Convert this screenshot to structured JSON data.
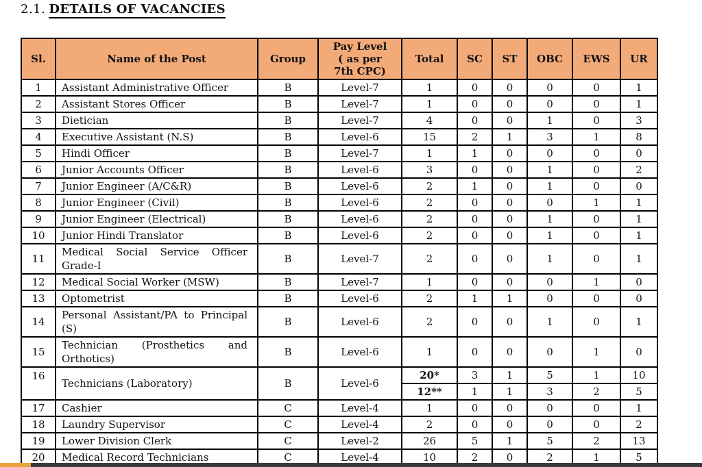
{
  "page": {
    "section_number": "2.1.",
    "title": "DETAILS OF VACANCIES"
  },
  "colors": {
    "header_bg": "#F3AA79",
    "table_border": "#000000",
    "progress_track": "#3A3A3C",
    "progress_fill": "#E8A33B"
  },
  "table": {
    "headers": [
      {
        "key": "sl",
        "label": "Sl."
      },
      {
        "key": "post-name",
        "label": "Name of the Post"
      },
      {
        "key": "group",
        "label": "Group"
      },
      {
        "key": "pay-level",
        "label": "Pay Level\n( as per\n7th CPC)"
      },
      {
        "key": "total",
        "label": "Total"
      },
      {
        "key": "sc",
        "label": "SC"
      },
      {
        "key": "st",
        "label": "ST"
      },
      {
        "key": "obc",
        "label": "OBC"
      },
      {
        "key": "ews",
        "label": "EWS"
      },
      {
        "key": "ur",
        "label": "UR"
      }
    ],
    "rows": [
      {
        "sl": "1",
        "name": "Assistant Administrative Officer",
        "group": "B",
        "pay_level": "Level-7",
        "counts": {
          "total": "1",
          "sc": "0",
          "st": "0",
          "obc": "0",
          "ews": "0",
          "ur": "1"
        }
      },
      {
        "sl": "2",
        "name": "Assistant Stores Officer",
        "group": "B",
        "pay_level": "Level-7",
        "counts": {
          "total": "1",
          "sc": "0",
          "st": "0",
          "obc": "0",
          "ews": "0",
          "ur": "1"
        }
      },
      {
        "sl": "3",
        "name": "Dietician",
        "group": "B",
        "pay_level": "Level-7",
        "counts": {
          "total": "4",
          "sc": "0",
          "st": "0",
          "obc": "1",
          "ews": "0",
          "ur": "3"
        }
      },
      {
        "sl": "4",
        "name": "Executive Assistant (N.S)",
        "group": "B",
        "pay_level": "Level-6",
        "counts": {
          "total": "15",
          "sc": "2",
          "st": "1",
          "obc": "3",
          "ews": "1",
          "ur": "8"
        }
      },
      {
        "sl": "5",
        "name": "Hindi Officer",
        "group": "B",
        "pay_level": "Level-7",
        "counts": {
          "total": "1",
          "sc": "1",
          "st": "0",
          "obc": "0",
          "ews": "0",
          "ur": "0"
        }
      },
      {
        "sl": "6",
        "name": "Junior Accounts Officer",
        "group": "B",
        "pay_level": "Level-6",
        "counts": {
          "total": "3",
          "sc": "0",
          "st": "0",
          "obc": "1",
          "ews": "0",
          "ur": "2"
        }
      },
      {
        "sl": "7",
        "name": "Junior Engineer (A/C&R)",
        "group": "B",
        "pay_level": "Level-6",
        "counts": {
          "total": "2",
          "sc": "1",
          "st": "0",
          "obc": "1",
          "ews": "0",
          "ur": "0"
        }
      },
      {
        "sl": "8",
        "name": "Junior Engineer (Civil)",
        "group": "B",
        "pay_level": "Level-6",
        "counts": {
          "total": "2",
          "sc": "0",
          "st": "0",
          "obc": "0",
          "ews": "1",
          "ur": "1"
        }
      },
      {
        "sl": "9",
        "name": "Junior Engineer (Electrical)",
        "group": "B",
        "pay_level": "Level-6",
        "counts": {
          "total": "2",
          "sc": "0",
          "st": "0",
          "obc": "1",
          "ews": "0",
          "ur": "1"
        }
      },
      {
        "sl": "10",
        "name": "Junior Hindi Translator",
        "group": "B",
        "pay_level": "Level-6",
        "counts": {
          "total": "2",
          "sc": "0",
          "st": "0",
          "obc": "1",
          "ews": "0",
          "ur": "1"
        }
      },
      {
        "sl": "11",
        "name": "Medical Social Service Officer Grade-I",
        "group": "B",
        "pay_level": "Level-7",
        "counts": {
          "total": "2",
          "sc": "0",
          "st": "0",
          "obc": "1",
          "ews": "0",
          "ur": "1"
        }
      },
      {
        "sl": "12",
        "name": "Medical Social Worker (MSW)",
        "group": "B",
        "pay_level": "Level-7",
        "counts": {
          "total": "1",
          "sc": "0",
          "st": "0",
          "obc": "0",
          "ews": "1",
          "ur": "0"
        }
      },
      {
        "sl": "13",
        "name": "Optometrist",
        "group": "B",
        "pay_level": "Level-6",
        "counts": {
          "total": "2",
          "sc": "1",
          "st": "1",
          "obc": "0",
          "ews": "0",
          "ur": "0"
        }
      },
      {
        "sl": "14",
        "name": "Personal Assistant/PA to Principal (S)",
        "group": "B",
        "pay_level": "Level-6",
        "counts": {
          "total": "2",
          "sc": "0",
          "st": "0",
          "obc": "1",
          "ews": "0",
          "ur": "1"
        }
      },
      {
        "sl": "15",
        "name": "Technician (Prosthetics and Orthotics)",
        "group": "B",
        "pay_level": "Level-6",
        "counts": {
          "total": "1",
          "sc": "0",
          "st": "0",
          "obc": "0",
          "ews": "1",
          "ur": "0"
        }
      },
      {
        "sl": "16",
        "name": "Technicians (Laboratory)",
        "group": "B",
        "pay_level": "Level-6",
        "counts": {
          "total": "20*",
          "sc": "3",
          "st": "1",
          "obc": "5",
          "ews": "1",
          "ur": "10"
        },
        "total_bold": true,
        "second_counts": {
          "total": "12**",
          "sc": "1",
          "st": "1",
          "obc": "3",
          "ews": "2",
          "ur": "5"
        },
        "second_total_bold": true
      },
      {
        "sl": "17",
        "name": "Cashier",
        "group": "C",
        "pay_level": "Level-4",
        "counts": {
          "total": "1",
          "sc": "0",
          "st": "0",
          "obc": "0",
          "ews": "0",
          "ur": "1"
        }
      },
      {
        "sl": "18",
        "name": "Laundry Supervisor",
        "group": "C",
        "pay_level": "Level-4",
        "counts": {
          "total": "2",
          "sc": "0",
          "st": "0",
          "obc": "0",
          "ews": "0",
          "ur": "2"
        }
      },
      {
        "sl": "19",
        "name": "Lower Division Clerk",
        "group": "C",
        "pay_level": "Level-2",
        "counts": {
          "total": "26",
          "sc": "5",
          "st": "1",
          "obc": "5",
          "ews": "2",
          "ur": "13"
        }
      },
      {
        "sl": "20",
        "name": "Medical Record Technicians",
        "group": "C",
        "pay_level": "Level-4",
        "counts": {
          "total": "10",
          "sc": "2",
          "st": "0",
          "obc": "2",
          "ews": "1",
          "ur": "5"
        }
      }
    ]
  },
  "footer_bar": {
    "fill_percent": 4.4
  }
}
